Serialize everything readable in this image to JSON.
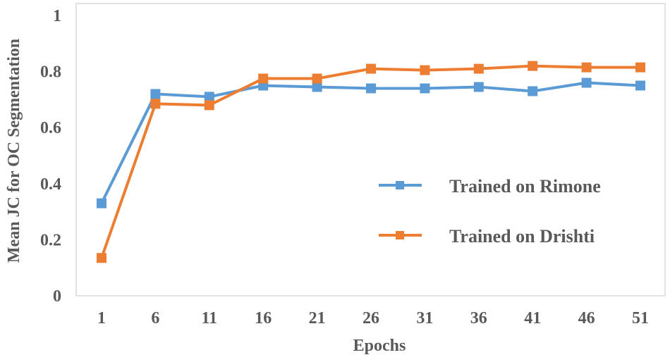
{
  "chart_data": {
    "type": "line",
    "title": "",
    "xlabel": "Epochs",
    "ylabel": "Mean JC for OC Segmentation",
    "categories": [
      "1",
      "6",
      "11",
      "16",
      "21",
      "26",
      "31",
      "36",
      "41",
      "46",
      "51"
    ],
    "ylim": [
      0,
      1
    ],
    "yticks": [
      "0",
      "0.2",
      "0.4",
      "0.6",
      "0.8",
      "1"
    ],
    "grid": false,
    "legend_position": "center-right",
    "series": [
      {
        "name": "Trained on Rimone",
        "color": "#5B9BD5",
        "marker": "square",
        "values": [
          0.33,
          0.72,
          0.71,
          0.75,
          0.745,
          0.74,
          0.74,
          0.745,
          0.73,
          0.76,
          0.75
        ]
      },
      {
        "name": "Trained on Drishti",
        "color": "#ED7D31",
        "marker": "square",
        "values": [
          0.135,
          0.685,
          0.68,
          0.775,
          0.775,
          0.81,
          0.805,
          0.81,
          0.82,
          0.815,
          0.815
        ]
      }
    ]
  }
}
